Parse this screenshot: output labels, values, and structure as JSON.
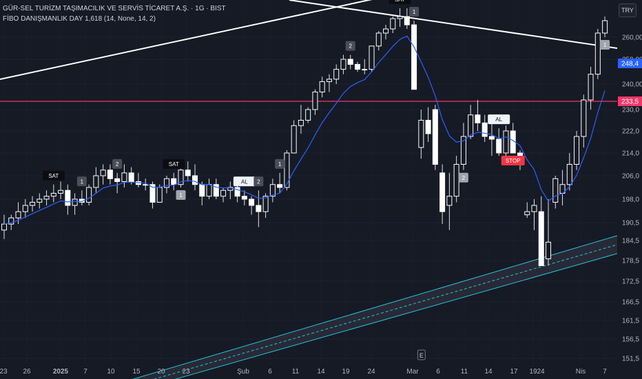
{
  "header": {
    "title": "GÜR-SEL TURİZM TAŞIMACILIK VE SERVİS TİCARET A.Ş. · 1G · BIST",
    "indicator": "FİBO DANIŞMANLIK DAY 1,618 (14, None, 14, 2)",
    "currency": "TRY"
  },
  "chart_data": {
    "type": "candlestick",
    "y_ticks": [
      "260,00",
      "250,00",
      "240,00",
      "230,0",
      "222,0",
      "214,0",
      "206,0",
      "198,0",
      "190,5",
      "184,5",
      "178,5",
      "172,5",
      "166,5",
      "161,5",
      "156,5",
      "151,5"
    ],
    "x_ticks": [
      "23",
      "26",
      "2025",
      "7",
      "10",
      "15",
      "20",
      "23",
      "Şub",
      "6",
      "11",
      "14",
      "19",
      "24",
      "Mar",
      "6",
      "11",
      "14",
      "17",
      "19",
      "24",
      "Nis",
      "7"
    ],
    "price_labels": [
      {
        "text": "248,4",
        "value": 248.4,
        "color": "#2962ff"
      },
      {
        "text": "233,5",
        "value": 233.5,
        "color": "#f23668"
      }
    ],
    "horizontal_line": {
      "value": 233.5,
      "color": "#f23668"
    },
    "candles": [
      {
        "o": 188,
        "h": 193,
        "l": 185,
        "c": 190
      },
      {
        "o": 190,
        "h": 193,
        "l": 188,
        "c": 192
      },
      {
        "o": 192,
        "h": 197,
        "l": 190,
        "c": 194
      },
      {
        "o": 194,
        "h": 198,
        "l": 192,
        "c": 196
      },
      {
        "o": 196,
        "h": 199,
        "l": 194,
        "c": 197
      },
      {
        "o": 197,
        "h": 200,
        "l": 195,
        "c": 198
      },
      {
        "o": 198,
        "h": 201,
        "l": 196,
        "c": 199
      },
      {
        "o": 199,
        "h": 203,
        "l": 197,
        "c": 200
      },
      {
        "o": 200,
        "h": 204,
        "l": 198,
        "c": 201
      },
      {
        "o": 201,
        "h": 203,
        "l": 193,
        "c": 196
      },
      {
        "o": 196,
        "h": 200,
        "l": 193,
        "c": 198
      },
      {
        "o": 198,
        "h": 201,
        "l": 196,
        "c": 197
      },
      {
        "o": 197,
        "h": 203,
        "l": 196,
        "c": 202
      },
      {
        "o": 202,
        "h": 209,
        "l": 200,
        "c": 206
      },
      {
        "o": 206,
        "h": 210,
        "l": 203,
        "c": 208
      },
      {
        "o": 208,
        "h": 210,
        "l": 203,
        "c": 205
      },
      {
        "o": 205,
        "h": 207,
        "l": 200,
        "c": 204
      },
      {
        "o": 204,
        "h": 210,
        "l": 202,
        "c": 207
      },
      {
        "o": 207,
        "h": 209,
        "l": 203,
        "c": 204
      },
      {
        "o": 204,
        "h": 207,
        "l": 202,
        "c": 203
      },
      {
        "o": 203,
        "h": 205,
        "l": 201,
        "c": 203
      },
      {
        "o": 203,
        "h": 204,
        "l": 195,
        "c": 197
      },
      {
        "o": 197,
        "h": 203,
        "l": 197,
        "c": 202
      },
      {
        "o": 202,
        "h": 206,
        "l": 200,
        "c": 205
      },
      {
        "o": 205,
        "h": 207,
        "l": 201,
        "c": 203
      },
      {
        "o": 203,
        "h": 210,
        "l": 202,
        "c": 208
      },
      {
        "o": 208,
        "h": 211,
        "l": 204,
        "c": 206
      },
      {
        "o": 206,
        "h": 210,
        "l": 201,
        "c": 203
      },
      {
        "o": 203,
        "h": 204,
        "l": 196,
        "c": 199
      },
      {
        "o": 199,
        "h": 205,
        "l": 198,
        "c": 203
      },
      {
        "o": 203,
        "h": 205,
        "l": 198,
        "c": 199
      },
      {
        "o": 199,
        "h": 202,
        "l": 197,
        "c": 201
      },
      {
        "o": 201,
        "h": 204,
        "l": 198,
        "c": 202
      },
      {
        "o": 202,
        "h": 204,
        "l": 197,
        "c": 199
      },
      {
        "o": 199,
        "h": 201,
        "l": 196,
        "c": 198
      },
      {
        "o": 198,
        "h": 199,
        "l": 193,
        "c": 196
      },
      {
        "o": 196,
        "h": 201,
        "l": 189,
        "c": 194
      },
      {
        "o": 194,
        "h": 200,
        "l": 192,
        "c": 199
      },
      {
        "o": 199,
        "h": 205,
        "l": 197,
        "c": 203
      },
      {
        "o": 203,
        "h": 207,
        "l": 200,
        "c": 202
      },
      {
        "o": 202,
        "h": 215,
        "l": 201,
        "c": 214
      },
      {
        "o": 214,
        "h": 226,
        "l": 214,
        "c": 224
      },
      {
        "o": 224,
        "h": 232,
        "l": 221,
        "c": 226
      },
      {
        "o": 226,
        "h": 231,
        "l": 225,
        "c": 230
      },
      {
        "o": 230,
        "h": 238,
        "l": 228,
        "c": 237
      },
      {
        "o": 237,
        "h": 243,
        "l": 235,
        "c": 241
      },
      {
        "o": 241,
        "h": 244,
        "l": 237,
        "c": 242
      },
      {
        "o": 242,
        "h": 248,
        "l": 240,
        "c": 246
      },
      {
        "o": 246,
        "h": 252,
        "l": 244,
        "c": 250
      },
      {
        "o": 250,
        "h": 252,
        "l": 246,
        "c": 248
      },
      {
        "o": 248,
        "h": 249,
        "l": 245,
        "c": 246
      },
      {
        "o": 246,
        "h": 250,
        "l": 244,
        "c": 246
      },
      {
        "o": 246,
        "h": 256,
        "l": 245,
        "c": 256
      },
      {
        "o": 256,
        "h": 263,
        "l": 254,
        "c": 262
      },
      {
        "o": 262,
        "h": 266,
        "l": 259,
        "c": 264
      },
      {
        "o": 264,
        "h": 270,
        "l": 262,
        "c": 269
      },
      {
        "o": 269,
        "h": 274,
        "l": 265,
        "c": 270
      },
      {
        "o": 270,
        "h": 274,
        "l": 264,
        "c": 266
      },
      {
        "o": 266,
        "h": 268,
        "l": 238,
        "c": 238
      },
      {
        "o": 216,
        "h": 230,
        "l": 212,
        "c": 226
      },
      {
        "o": 226,
        "h": 231,
        "l": 218,
        "c": 221
      },
      {
        "o": 230,
        "h": 232,
        "l": 208,
        "c": 210
      },
      {
        "o": 207,
        "h": 210,
        "l": 190,
        "c": 194
      },
      {
        "o": 196,
        "h": 207,
        "l": 188,
        "c": 199
      },
      {
        "o": 199,
        "h": 213,
        "l": 197,
        "c": 210
      },
      {
        "o": 210,
        "h": 225,
        "l": 208,
        "c": 220
      },
      {
        "o": 220,
        "h": 232,
        "l": 219,
        "c": 228
      },
      {
        "o": 228,
        "h": 234,
        "l": 222,
        "c": 225
      },
      {
        "o": 225,
        "h": 228,
        "l": 218,
        "c": 220
      },
      {
        "o": 220,
        "h": 225,
        "l": 213,
        "c": 219
      },
      {
        "o": 219,
        "h": 223,
        "l": 213,
        "c": 214
      },
      {
        "o": 214,
        "h": 224,
        "l": 212,
        "c": 222
      },
      {
        "o": 222,
        "h": 225,
        "l": 214,
        "c": 214
      },
      {
        "o": 214,
        "h": 215,
        "l": 208,
        "c": 210
      },
      {
        "o": 193,
        "h": 197,
        "l": 192,
        "c": 194
      },
      {
        "o": 194,
        "h": 198,
        "l": 188,
        "c": 196
      },
      {
        "o": 194,
        "h": 199,
        "l": 177,
        "c": 177
      },
      {
        "o": 179,
        "h": 198,
        "l": 177,
        "c": 184
      },
      {
        "o": 197,
        "h": 206,
        "l": 195,
        "c": 205
      },
      {
        "o": 200,
        "h": 208,
        "l": 196,
        "c": 203
      },
      {
        "o": 203,
        "h": 214,
        "l": 201,
        "c": 210
      },
      {
        "o": 210,
        "h": 222,
        "l": 208,
        "c": 220
      },
      {
        "o": 220,
        "h": 236,
        "l": 216,
        "c": 234
      },
      {
        "o": 234,
        "h": 247,
        "l": 230,
        "c": 244
      },
      {
        "o": 244,
        "h": 264,
        "l": 242,
        "c": 262
      },
      {
        "o": 262,
        "h": 270,
        "l": 260,
        "c": 268
      }
    ],
    "overlays": {
      "ma_line": {
        "name": "FİBO DANIŞMANLIK DAY 1,618",
        "color": "#2962ff"
      },
      "trendline_upper": {
        "color": "#ffffff"
      },
      "channel": {
        "color": "#26c6da"
      }
    },
    "signals": [
      {
        "type": "SAT",
        "text": "SAT",
        "idx": 7
      },
      {
        "type": "step",
        "text": "1",
        "idx": 11
      },
      {
        "type": "step",
        "text": "2",
        "idx": 16
      },
      {
        "type": "SAT",
        "text": "SAT",
        "idx": 24
      },
      {
        "type": "step",
        "text": "1",
        "idx": 25
      },
      {
        "type": "AL",
        "text": "AL",
        "idx": 34
      },
      {
        "type": "step",
        "text": "2",
        "idx": 36
      },
      {
        "type": "step",
        "text": "1",
        "idx": 39
      },
      {
        "type": "step",
        "text": "2",
        "idx": 49
      },
      {
        "type": "SAT",
        "text": "SAT",
        "idx": 56
      },
      {
        "type": "step",
        "text": "1",
        "idx": 58
      },
      {
        "type": "step",
        "text": "2",
        "idx": 65
      },
      {
        "type": "AL",
        "text": "AL",
        "idx": 70
      },
      {
        "type": "STOP",
        "text": "STOP",
        "idx": 72
      },
      {
        "type": "step",
        "text": "1",
        "idx": 85
      }
    ],
    "markers": [
      {
        "text": "E",
        "position": "bottom",
        "idx": 59
      }
    ]
  }
}
